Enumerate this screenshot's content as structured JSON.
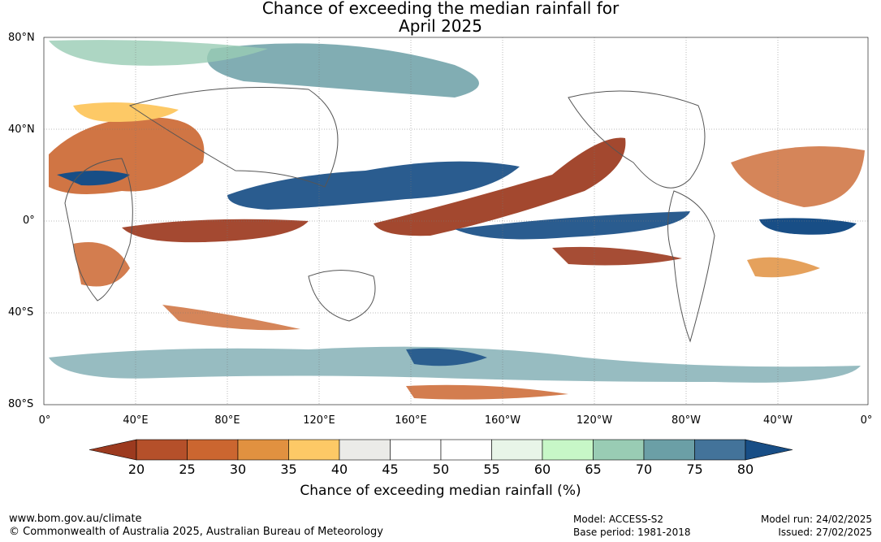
{
  "title": {
    "line1": "Chance of exceeding the median rainfall for",
    "line2": "April 2025"
  },
  "lat_labels": [
    "80°N",
    "40°N",
    "0°",
    "40°S",
    "80°S"
  ],
  "lon_labels": [
    "0°",
    "40°E",
    "80°E",
    "120°E",
    "160°E",
    "160°W",
    "120°W",
    "80°W",
    "40°W",
    "0°"
  ],
  "colorbar": {
    "ticks": [
      "20",
      "25",
      "30",
      "35",
      "40",
      "45",
      "50",
      "55",
      "60",
      "65",
      "70",
      "75",
      "80"
    ],
    "colors": [
      "#9c3a1f",
      "#b5502a",
      "#cb6630",
      "#e19140",
      "#fdc966",
      "#ebebe8",
      "#ffffff",
      "#ffffff",
      "#e8f5e8",
      "#c7f7c7",
      "#99ccb4",
      "#6b9fa6",
      "#43739a",
      "#184e86"
    ],
    "title": "Chance of exceeding median rainfall (%)"
  },
  "footer": {
    "url": "www.bom.gov.au/climate",
    "copyright": "© Commonwealth of Australia 2025, Australian Bureau of Meteorology",
    "model": "Model: ACCESS-S2",
    "base_period": "Base period: 1981-2018",
    "model_run": "Model run: 24/02/2025",
    "issued": "Issued: 27/02/2025"
  },
  "map_colors": {
    "dry_strong": "#9c3a1f",
    "dry": "#cb6630",
    "dry_light": "#fdc966",
    "neutral": "#ebebe8",
    "wet_light": "#c7f7c7",
    "wet": "#6b9fa6",
    "wet_strong": "#184e86"
  }
}
